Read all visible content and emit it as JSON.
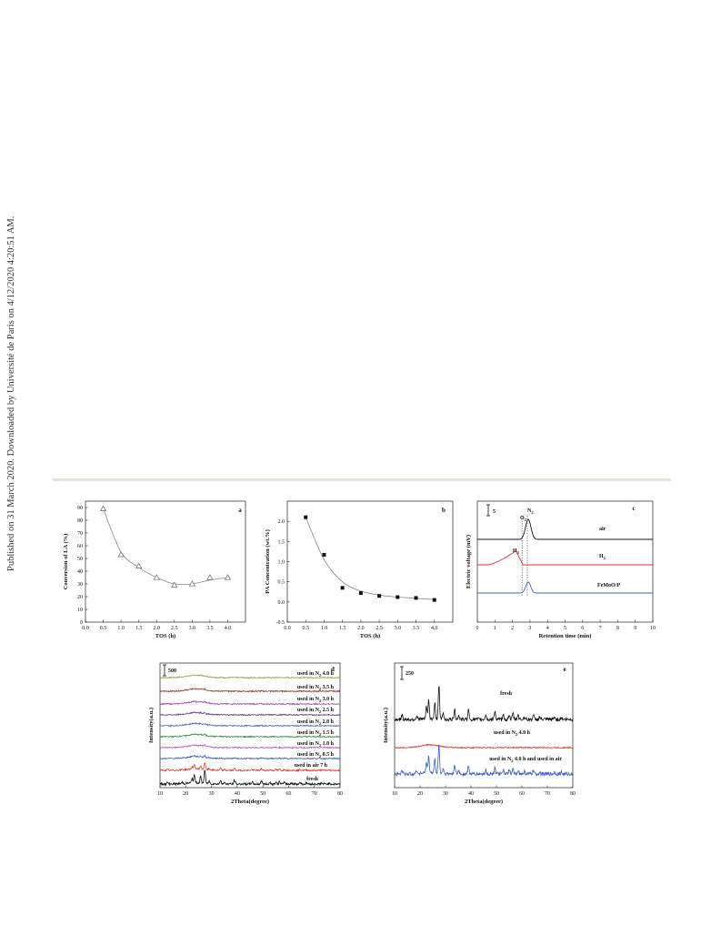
{
  "sidebar_text": "Published on 31 March 2020. Downloaded by Universit&#233; de Paris on 4/12/2020 4:20:51 AM.",
  "chart_data": [
    {
      "panel": "a",
      "type": "scatter",
      "xlabel": "TOS (h)",
      "ylabel": "Conversion of LA (%)",
      "xlim": [
        0,
        4.5
      ],
      "ylim": [
        0,
        95
      ],
      "xticks": [
        "0.0",
        "0.5",
        "1.0",
        "1.5",
        "2.0",
        "2.5",
        "3.0",
        "3.5",
        "4.0"
      ],
      "yticks": [
        "0",
        "10",
        "20",
        "30",
        "40",
        "50",
        "60",
        "70",
        "80",
        "90"
      ],
      "marker": "open-triangle",
      "fit_line": true,
      "x": [
        0.5,
        1.0,
        1.5,
        2.0,
        2.5,
        3.0,
        3.5,
        4.0
      ],
      "y": [
        89,
        53,
        44,
        35,
        29,
        30,
        35,
        35
      ]
    },
    {
      "panel": "b",
      "type": "scatter",
      "xlabel": "TOS (h)",
      "ylabel": "PA Concentration (wt.%)",
      "xlim": [
        0,
        4.5
      ],
      "ylim": [
        -0.5,
        2.5
      ],
      "xticks": [
        "0.0",
        "0.5",
        "1.0",
        "1.5",
        "2.0",
        "2.5",
        "3.0",
        "3.5",
        "4.0"
      ],
      "yticks": [
        "-0.5",
        "0.0",
        "0.5",
        "1.0",
        "1.5",
        "2.0"
      ],
      "marker": "filled-square",
      "fit_line": true,
      "x": [
        0.5,
        1.0,
        1.5,
        2.0,
        2.5,
        3.0,
        3.5,
        4.0
      ],
      "y": [
        2.1,
        1.17,
        0.35,
        0.22,
        0.15,
        0.12,
        0.1,
        0.05
      ]
    },
    {
      "panel": "c",
      "type": "line",
      "xlabel": "Retention time (min)",
      "ylabel": "Electric voltage (mV)",
      "xlim": [
        0,
        10
      ],
      "xticks": [
        "0",
        "1",
        "2",
        "3",
        "4",
        "5",
        "6",
        "7",
        "8",
        "9",
        "10"
      ],
      "scale_bar": "5",
      "peak_labels": [
        "O",
        "2",
        "N",
        "2",
        "H",
        "2"
      ],
      "series": [
        {
          "name": "air",
          "color": "#111111",
          "baseline": 2.4,
          "peaks": [
            {
              "x": 2.9,
              "h": 1.0,
              "w": 0.22
            }
          ]
        },
        {
          "name": "H",
          "name_sub": "2",
          "color": "#e0302a",
          "baseline": 1.15,
          "h2_hump": true
        },
        {
          "name": "FeMoO/P",
          "color": "#3a66b8",
          "baseline": 0,
          "peaks": [
            {
              "x": 2.9,
              "h": 0.55,
              "w": 0.2
            }
          ]
        }
      ],
      "dotted_lines_x": [
        2.55,
        2.85
      ]
    },
    {
      "panel": "d",
      "type": "line",
      "xlabel": "2Theta(degree)",
      "ylabel": "Intensity(a.u.)",
      "xlim": [
        10,
        80
      ],
      "xticks": [
        "10",
        "20",
        "30",
        "40",
        "50",
        "60",
        "70",
        "80"
      ],
      "scale_bar": "500",
      "series": [
        {
          "label": "used in N",
          "label_sub": "2",
          "label_end": " 4.0 h",
          "color": "#8fa646"
        },
        {
          "label": "used in N",
          "label_sub": "2",
          "label_end": " 3.5 h",
          "color": "#9b2b2b"
        },
        {
          "label": "used in N",
          "label_sub": "2",
          "label_end": " 3.0 h",
          "color": "#9a4aa8"
        },
        {
          "label": "used in N",
          "label_sub": "2",
          "label_end": " 2.5 h",
          "color": "#5d3f8e"
        },
        {
          "label": "used in N",
          "label_sub": "2",
          "label_end": " 2.0 h",
          "color": "#5c5fc0"
        },
        {
          "label": "used in N",
          "label_sub": "2",
          "label_end": " 1.5 h",
          "color": "#2e8b3e"
        },
        {
          "label": "used in N",
          "label_sub": "2",
          "label_end": " 1.0 h",
          "color": "#c24cb8"
        },
        {
          "label": "used in N",
          "label_sub": "2",
          "label_end": " 0.5 h",
          "color": "#3a5bd0"
        },
        {
          "label": "used in air 7 h",
          "label_sub": "",
          "label_end": "",
          "color": "#e33a2c"
        },
        {
          "label": "fresh",
          "label_sub": "",
          "label_end": "",
          "color": "#111111"
        }
      ]
    },
    {
      "panel": "e",
      "type": "line",
      "xlabel": "2Theta(degree)",
      "ylabel": "Intensity(a.u.)",
      "xlim": [
        10,
        80
      ],
      "xticks": [
        "10",
        "20",
        "30",
        "40",
        "50",
        "60",
        "70",
        "80"
      ],
      "scale_bar": "250",
      "series": [
        {
          "label": "fresh",
          "label_sub": "",
          "label_end": "",
          "color": "#111111"
        },
        {
          "label": "used in N",
          "label_sub": "2",
          "label_end": " 4.0 h",
          "color": "#e33a2c"
        },
        {
          "label": "used in N",
          "label_sub": "2",
          "label_end": " 4.0 h and used in air",
          "color": "#3a5bd0"
        }
      ]
    }
  ]
}
